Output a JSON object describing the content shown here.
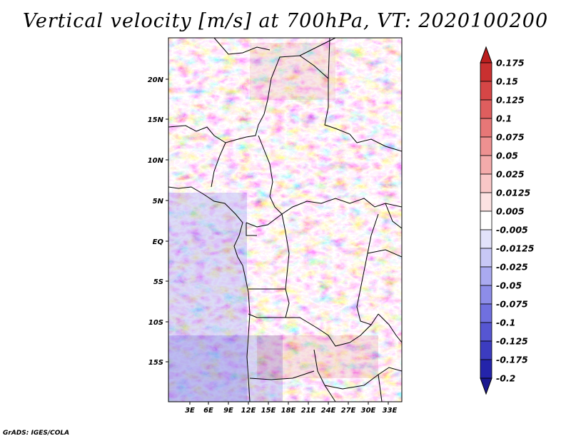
{
  "title": "Vertical velocity [m/s] at 700hPa, VT: 2020100200",
  "credit": "GrADS: IGES/COLA",
  "map": {
    "variable": "Vertical velocity",
    "units": "m/s",
    "level": "700hPa",
    "valid_time": "2020100200",
    "lon_labels": [
      "3E",
      "6E",
      "9E",
      "12E",
      "15E",
      "18E",
      "21E",
      "24E",
      "27E",
      "30E",
      "33E"
    ],
    "lat_labels": [
      "20N",
      "15N",
      "10N",
      "5N",
      "EQ",
      "5S",
      "10S",
      "15S"
    ]
  },
  "colorbar": {
    "levels": [
      "0.175",
      "0.15",
      "0.125",
      "0.1",
      "0.075",
      "0.05",
      "0.025",
      "0.0125",
      "0.005",
      "-0.005",
      "-0.0125",
      "-0.025",
      "-0.05",
      "-0.075",
      "-0.1",
      "-0.125",
      "-0.175",
      "-0.2"
    ],
    "colors": [
      "#bb1e1e",
      "#c93030",
      "#d54646",
      "#df5e5e",
      "#e77777",
      "#ee9191",
      "#f4abab",
      "#f9c7c7",
      "#fce2e2",
      "#ffffff",
      "#e2e2fa",
      "#c8c8f6",
      "#aaaaf0",
      "#8d8de8",
      "#7070df",
      "#5656d2",
      "#3c3cc0",
      "#2424aa",
      "#1a1890"
    ]
  }
}
